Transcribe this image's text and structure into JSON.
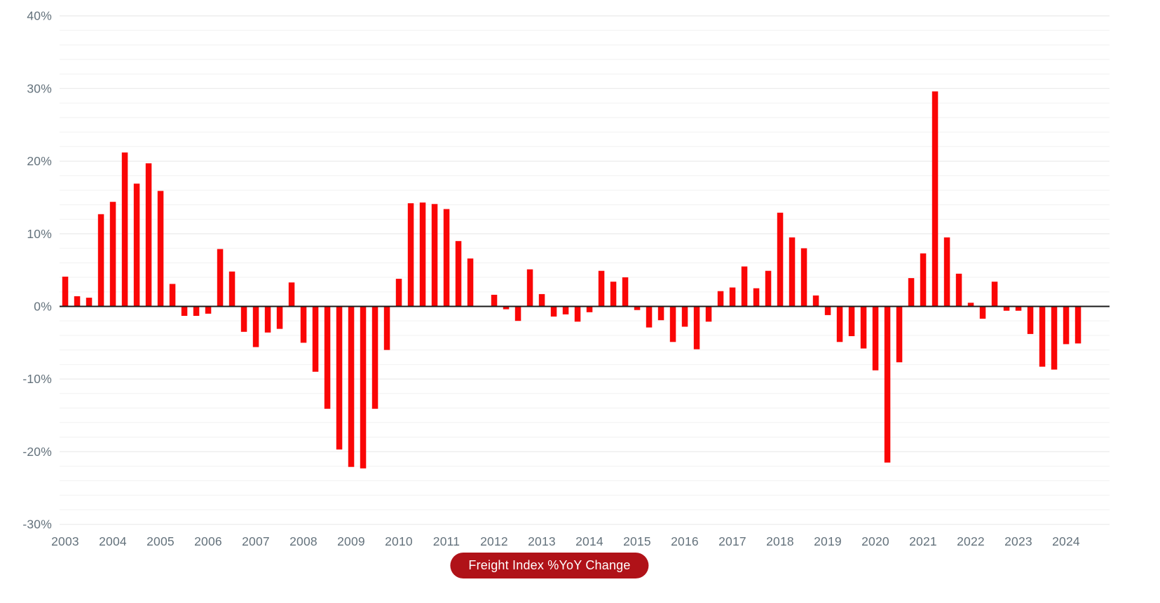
{
  "chart_data": {
    "type": "bar",
    "title": "",
    "xlabel": "",
    "ylabel": "",
    "unit": "%",
    "legend": "Freight Index %YoY Change",
    "legend_position": "bottom-center",
    "grid": "horizontal, minor every 2%, labeled every 10%",
    "ylim": [
      -30,
      40
    ],
    "y_tick_step": 10,
    "grid_step": 2,
    "y_tick_labels": [
      "40%",
      "30%",
      "20%",
      "10%",
      "0%",
      "-10%",
      "-20%",
      "-30%"
    ],
    "x_tick_years": [
      "2003",
      "2004",
      "2005",
      "2006",
      "2007",
      "2008",
      "2009",
      "2010",
      "2011",
      "2012",
      "2013",
      "2014",
      "2015",
      "2016",
      "2017",
      "2018",
      "2019",
      "2020",
      "2021",
      "2022",
      "2023",
      "2024"
    ],
    "categories": [
      "2003 Q1",
      "2003 Q2",
      "2003 Q3",
      "2003 Q4",
      "2004 Q1",
      "2004 Q2",
      "2004 Q3",
      "2004 Q4",
      "2005 Q1",
      "2005 Q2",
      "2005 Q3",
      "2005 Q4",
      "2006 Q1",
      "2006 Q2",
      "2006 Q3",
      "2006 Q4",
      "2007 Q1",
      "2007 Q2",
      "2007 Q3",
      "2007 Q4",
      "2008 Q1",
      "2008 Q2",
      "2008 Q3",
      "2008 Q4",
      "2009 Q1",
      "2009 Q2",
      "2009 Q3",
      "2009 Q4",
      "2010 Q1",
      "2010 Q2",
      "2010 Q3",
      "2010 Q4",
      "2011 Q1",
      "2011 Q2",
      "2011 Q3",
      "2011 Q4",
      "2012 Q1",
      "2012 Q2",
      "2012 Q3",
      "2012 Q4",
      "2013 Q1",
      "2013 Q2",
      "2013 Q3",
      "2013 Q4",
      "2014 Q1",
      "2014 Q2",
      "2014 Q3",
      "2014 Q4",
      "2015 Q1",
      "2015 Q2",
      "2015 Q3",
      "2015 Q4",
      "2016 Q1",
      "2016 Q2",
      "2016 Q3",
      "2016 Q4",
      "2017 Q1",
      "2017 Q2",
      "2017 Q3",
      "2017 Q4",
      "2018 Q1",
      "2018 Q2",
      "2018 Q3",
      "2018 Q4",
      "2019 Q1",
      "2019 Q2",
      "2019 Q3",
      "2019 Q4",
      "2020 Q1",
      "2020 Q2",
      "2020 Q3",
      "2020 Q4",
      "2021 Q1",
      "2021 Q2",
      "2021 Q3",
      "2021 Q4",
      "2022 Q1",
      "2022 Q2",
      "2022 Q3",
      "2022 Q4",
      "2023 Q1",
      "2023 Q2",
      "2023 Q3",
      "2023 Q4",
      "2024 Q1",
      "2024 Q2"
    ],
    "values": [
      4.1,
      1.4,
      1.2,
      12.7,
      14.4,
      21.2,
      16.9,
      19.7,
      15.9,
      3.1,
      -1.3,
      -1.3,
      -1.0,
      7.9,
      4.8,
      -3.5,
      -5.6,
      -3.6,
      -3.1,
      3.3,
      -5.0,
      -9.0,
      -14.1,
      -19.7,
      -22.1,
      -22.3,
      -14.1,
      -6.0,
      3.8,
      14.2,
      14.3,
      14.1,
      13.4,
      9.0,
      6.6,
      0.1,
      1.6,
      -0.4,
      -2.0,
      5.1,
      1.7,
      -1.4,
      -1.1,
      -2.1,
      -0.8,
      4.9,
      3.4,
      4.0,
      -0.5,
      -2.9,
      -1.9,
      -4.9,
      -2.8,
      -5.9,
      -2.1,
      2.1,
      2.6,
      5.5,
      2.5,
      4.9,
      12.9,
      9.5,
      8.0,
      1.5,
      -1.2,
      -4.9,
      -4.1,
      -5.8,
      -8.8,
      -21.5,
      -7.7,
      3.9,
      7.3,
      29.6,
      9.5,
      4.5,
      0.5,
      -1.7,
      3.4,
      -0.6,
      -0.6,
      -3.8,
      -8.3,
      -8.7,
      -5.2,
      -5.1
    ]
  },
  "colors": {
    "bar": "#fa0606",
    "legend_bg": "#b01218",
    "legend_text": "#ffffff",
    "axis_label": "#64727c",
    "grid_minor": "#f4f4f4",
    "grid_major": "#ececec",
    "zero_line": "#1a1a1a",
    "background": "#ffffff"
  }
}
